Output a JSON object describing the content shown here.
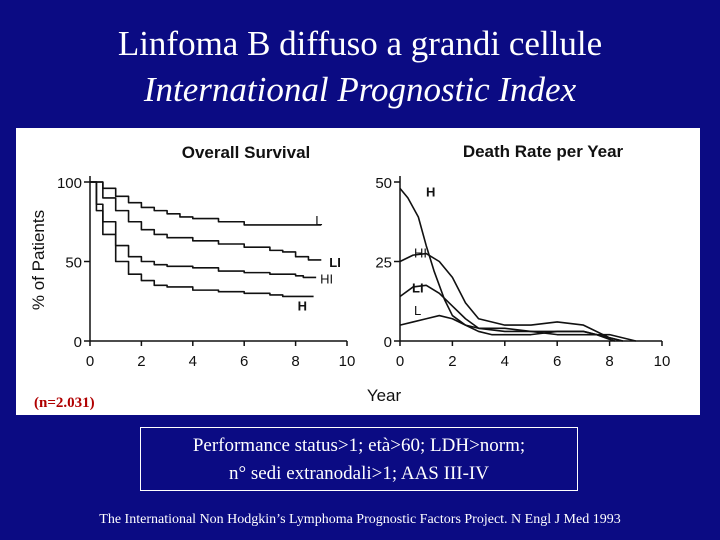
{
  "slide": {
    "title_line1": "Linfoma B diffuso a grandi cellule",
    "title_line2": "International Prognostic Index",
    "criteria_line1": "Performance status>1; età>60; LDH>norm;",
    "criteria_line2": "n° sedi extranodali>1; AAS III-IV",
    "citation": "The International Non Hodgkin’s Lymphoma Prognostic Factors Project. N Engl J Med 1993",
    "sample_size": "(n=2.031)",
    "shared_xlabel": "Year"
  },
  "colors": {
    "background": "#0b0b83",
    "text": "#ffffff",
    "panel": "#ffffff",
    "lines": "#111111",
    "sample_size": "#b00000"
  },
  "chart_data": [
    {
      "type": "line",
      "title": "Overall Survival",
      "xlabel": "Year",
      "ylabel": "% of Patients",
      "xlim": [
        0,
        10
      ],
      "ylim": [
        0,
        100
      ],
      "xticks": [
        "0",
        "2",
        "4",
        "6",
        "8",
        "10"
      ],
      "yticks": [
        "0",
        "50",
        "100"
      ],
      "series": [
        {
          "name": "L",
          "x": [
            0,
            0.5,
            1,
            1.5,
            2,
            2.5,
            3,
            3.5,
            4,
            5,
            6,
            7,
            8,
            8.3,
            8.5,
            9
          ],
          "y": [
            100,
            96,
            91,
            87,
            84,
            82,
            80,
            78,
            77,
            75,
            73,
            73,
            73,
            73,
            73,
            73
          ]
        },
        {
          "name": "LI",
          "x": [
            0,
            0.5,
            1,
            1.5,
            2,
            2.5,
            3,
            4,
            5,
            6,
            7,
            7.5,
            8,
            8.5,
            9
          ],
          "y": [
            100,
            90,
            82,
            75,
            70,
            67,
            65,
            63,
            61,
            59,
            57,
            56,
            53,
            51,
            51
          ]
        },
        {
          "name": "HI",
          "x": [
            0,
            0.25,
            0.5,
            1,
            1.5,
            2,
            2.5,
            3,
            4,
            5,
            6,
            7,
            8,
            8.3,
            8.8
          ],
          "y": [
            100,
            86,
            75,
            60,
            53,
            50,
            48,
            47,
            46,
            44,
            43,
            42,
            41,
            40,
            40
          ]
        },
        {
          "name": "H",
          "x": [
            0,
            0.25,
            0.5,
            1,
            1.5,
            2,
            2.5,
            3,
            4,
            5,
            6,
            7,
            7.5,
            8,
            8.7
          ],
          "y": [
            100,
            82,
            67,
            50,
            42,
            38,
            35,
            34,
            32,
            31,
            30,
            29,
            28,
            28,
            28
          ]
        }
      ]
    },
    {
      "type": "line",
      "title": "Death Rate per Year",
      "xlabel": "Year",
      "ylabel": "",
      "xlim": [
        0,
        10
      ],
      "ylim": [
        0,
        50
      ],
      "xticks": [
        "0",
        "2",
        "4",
        "6",
        "8",
        "10"
      ],
      "yticks": [
        "0",
        "25",
        "50"
      ],
      "series": [
        {
          "name": "H",
          "x": [
            0,
            0.3,
            0.7,
            1,
            1.3,
            1.7,
            2,
            2.5,
            3,
            3.5,
            4,
            5,
            6,
            7,
            7.5,
            8,
            8.2
          ],
          "y": [
            48,
            45,
            39,
            30,
            22,
            13,
            8,
            5,
            3,
            2,
            2,
            2,
            3,
            3,
            2,
            0.5,
            0
          ]
        },
        {
          "name": "HI",
          "x": [
            0,
            0.5,
            1,
            1.5,
            2,
            2.5,
            3,
            4,
            5,
            6,
            7,
            8,
            8.5
          ],
          "y": [
            25,
            27,
            27.5,
            25,
            20,
            12,
            7,
            5,
            5,
            6,
            5,
            1,
            0
          ]
        },
        {
          "name": "LI",
          "x": [
            0,
            0.5,
            1,
            1.5,
            2,
            2.5,
            3,
            4,
            5,
            6,
            7,
            8,
            8.5
          ],
          "y": [
            14,
            17,
            17.5,
            15,
            11,
            7,
            4,
            3,
            3,
            3,
            3,
            1,
            0
          ]
        },
        {
          "name": "L",
          "x": [
            0,
            0.5,
            1,
            1.5,
            2,
            2.5,
            3,
            4,
            5,
            6,
            7,
            8,
            9
          ],
          "y": [
            5,
            6,
            7,
            8,
            7,
            5,
            4,
            4,
            3,
            2,
            2,
            2,
            0
          ]
        }
      ]
    }
  ]
}
